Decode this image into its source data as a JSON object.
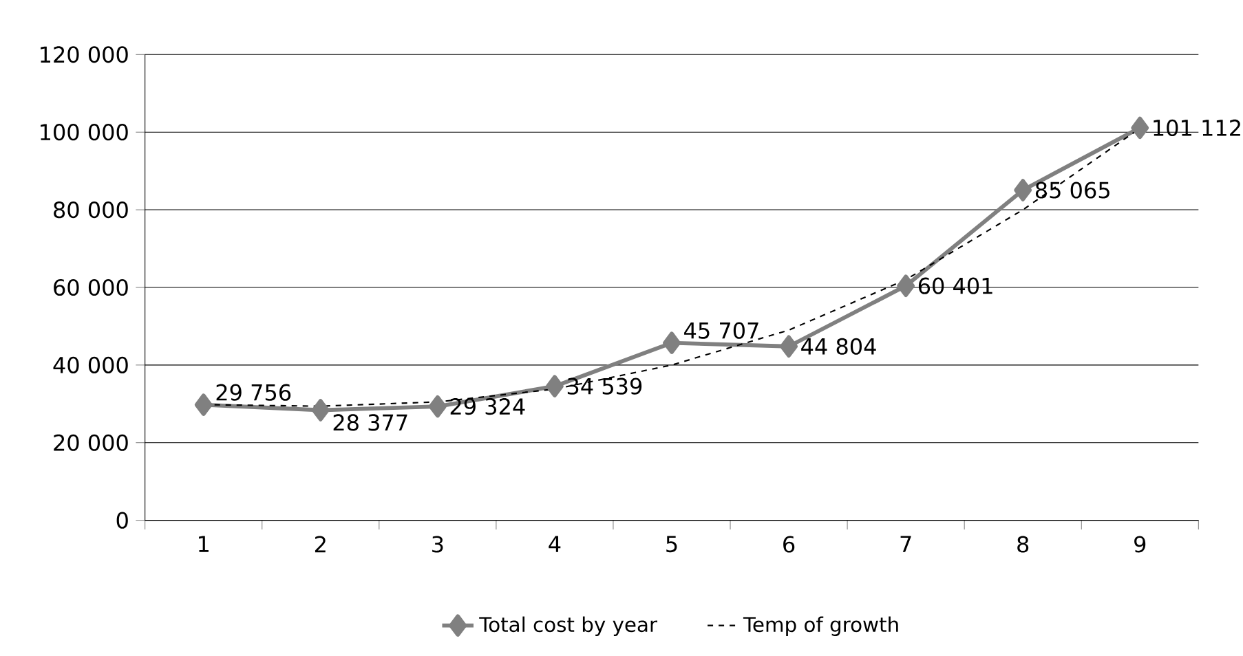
{
  "chart_data": {
    "type": "line",
    "categories": [
      "1",
      "2",
      "3",
      "4",
      "5",
      "6",
      "7",
      "8",
      "9"
    ],
    "series": [
      {
        "name": "Total cost by year",
        "color": "#808080",
        "marker": "diamond",
        "line_style": "solid",
        "values": [
          29756,
          28377,
          29324,
          34539,
          45707,
          44804,
          60401,
          85065,
          101112
        ],
        "value_labels": [
          "29 756",
          "28 377",
          "29 324",
          "34 539",
          "45 707",
          "44 804",
          "60 401",
          "85 065",
          "101 112"
        ]
      },
      {
        "name": "Temp of growth",
        "color": "#000000",
        "marker": "none",
        "line_style": "dashed",
        "values": [
          29800,
          29400,
          30500,
          33800,
          40000,
          49000,
          62000,
          80000,
          101000
        ]
      }
    ],
    "ylim": [
      0,
      120000
    ],
    "yticks": [
      {
        "value": 0,
        "label": "0"
      },
      {
        "value": 20000,
        "label": "20 000"
      },
      {
        "value": 40000,
        "label": "40 000"
      },
      {
        "value": 60000,
        "label": "60 000"
      },
      {
        "value": 80000,
        "label": "80 000"
      },
      {
        "value": 100000,
        "label": "100 000"
      },
      {
        "value": 120000,
        "label": "120 000"
      }
    ],
    "grid": "y",
    "legend": "bottom"
  }
}
